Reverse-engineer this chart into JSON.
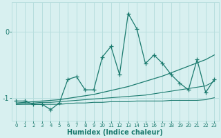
{
  "xlabel": "Humidex (Indice chaleur)",
  "background_color": "#d8f0f0",
  "grid_color": "#b8dede",
  "line_color": "#1a7a6e",
  "x_values": [
    0,
    1,
    2,
    3,
    4,
    5,
    6,
    7,
    8,
    9,
    10,
    11,
    12,
    13,
    14,
    15,
    16,
    17,
    18,
    19,
    20,
    21,
    22,
    23
  ],
  "main_y": [
    -1.05,
    -1.05,
    -1.1,
    -1.1,
    -1.18,
    -1.08,
    -0.72,
    -0.68,
    -0.88,
    -0.88,
    -0.38,
    -0.22,
    -0.65,
    0.28,
    0.05,
    -0.48,
    -0.35,
    -0.48,
    -0.65,
    -0.78,
    -0.88,
    -0.42,
    -0.92,
    -0.72
  ],
  "trend1_y": [
    -1.08,
    -1.07,
    -1.06,
    -1.05,
    -1.04,
    -1.03,
    -1.01,
    -0.99,
    -0.97,
    -0.95,
    -0.92,
    -0.89,
    -0.86,
    -0.83,
    -0.79,
    -0.75,
    -0.71,
    -0.67,
    -0.62,
    -0.57,
    -0.52,
    -0.47,
    -0.42,
    -0.35
  ],
  "trend2_y": [
    -1.1,
    -1.09,
    -1.08,
    -1.07,
    -1.07,
    -1.06,
    -1.05,
    -1.04,
    -1.03,
    -1.02,
    -1.01,
    -1.0,
    -0.99,
    -0.98,
    -0.97,
    -0.96,
    -0.94,
    -0.92,
    -0.9,
    -0.88,
    -0.86,
    -0.84,
    -0.82,
    -0.75
  ],
  "flat_y": [
    -1.1,
    -1.1,
    -1.1,
    -1.1,
    -1.1,
    -1.1,
    -1.09,
    -1.08,
    -1.08,
    -1.07,
    -1.07,
    -1.06,
    -1.06,
    -1.06,
    -1.05,
    -1.05,
    -1.05,
    -1.05,
    -1.04,
    -1.04,
    -1.04,
    -1.04,
    -1.03,
    -1.0
  ],
  "yticks": [
    -1,
    0
  ],
  "ylim": [
    -1.35,
    0.45
  ],
  "xlim": [
    -0.5,
    23.5
  ]
}
